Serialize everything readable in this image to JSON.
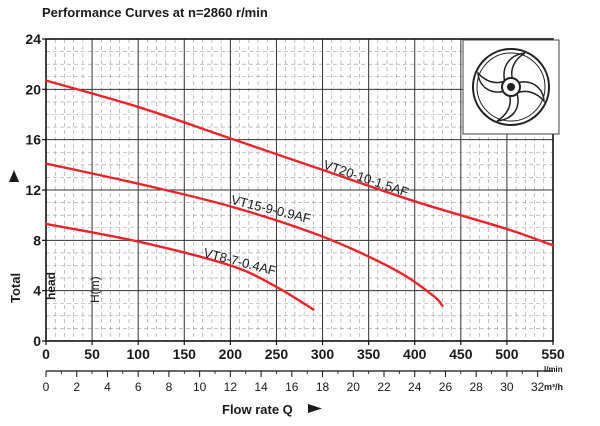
{
  "chart_data": {
    "type": "line",
    "title": "Performance Curves at n=2860 r/min",
    "ylabel_parts": [
      "Total",
      "head",
      "H(m)"
    ],
    "xlabel": "Flow rate Q",
    "x_unit_lpm": "l/min",
    "x_unit_m3h": "m³/h",
    "xlim": [
      0,
      550
    ],
    "ylim": [
      0,
      24
    ],
    "x_ticks": [
      0,
      50,
      100,
      150,
      200,
      250,
      300,
      350,
      400,
      450,
      500,
      550
    ],
    "y_ticks": [
      0,
      4,
      8,
      12,
      16,
      20,
      24
    ],
    "x2_ticks": [
      0,
      2,
      4,
      6,
      8,
      10,
      12,
      14,
      16,
      18,
      20,
      22,
      24,
      26,
      28,
      30,
      32
    ],
    "grid": true,
    "line_color": "#e8252a",
    "series": [
      {
        "name": "VT20-10-1.5AF",
        "x": [
          0,
          100,
          200,
          300,
          400,
          500,
          550
        ],
        "y": [
          20.7,
          18.6,
          16.1,
          13.6,
          11.1,
          8.9,
          7.6
        ]
      },
      {
        "name": "VT15-9-0.9AF",
        "x": [
          0,
          100,
          200,
          300,
          380,
          420,
          430
        ],
        "y": [
          14.1,
          12.5,
          10.7,
          8.3,
          5.6,
          3.6,
          2.8
        ]
      },
      {
        "name": "VT8-7-0.4AF",
        "x": [
          0,
          100,
          200,
          250,
          290
        ],
        "y": [
          9.3,
          7.9,
          6.0,
          4.3,
          2.5
        ]
      }
    ]
  }
}
